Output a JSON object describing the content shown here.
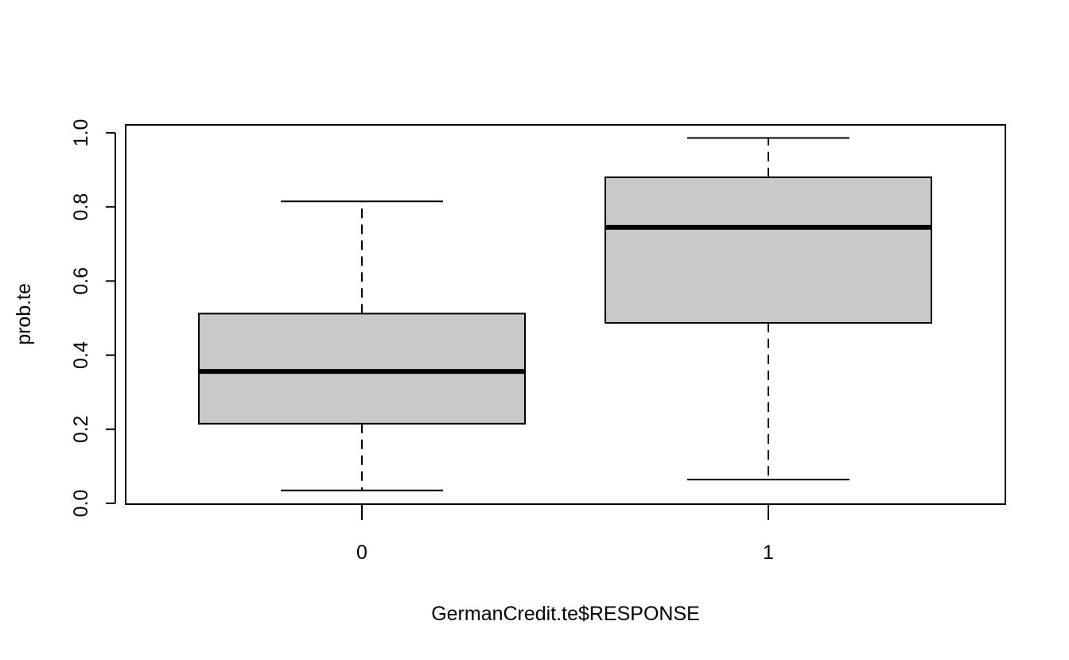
{
  "chart_data": {
    "type": "boxplot",
    "title": "",
    "xlabel": "GermanCredit.te$RESPONSE",
    "ylabel": "prob.te",
    "ylim": [
      0.0,
      1.0
    ],
    "y_ticks": [
      "0.0",
      "0.2",
      "0.4",
      "0.6",
      "0.8",
      "1.0"
    ],
    "grid": false,
    "categories": [
      "0",
      "1"
    ],
    "boxes": [
      {
        "category": "0",
        "whisker_low": 0.035,
        "q1": 0.215,
        "median": 0.356,
        "q3": 0.512,
        "whisker_high": 0.815
      },
      {
        "category": "1",
        "whisker_low": 0.064,
        "q1": 0.487,
        "median": 0.745,
        "q3": 0.88,
        "whisker_high": 0.986
      }
    ],
    "box_fill": "#c9c9c9",
    "line_color": "#000000"
  }
}
